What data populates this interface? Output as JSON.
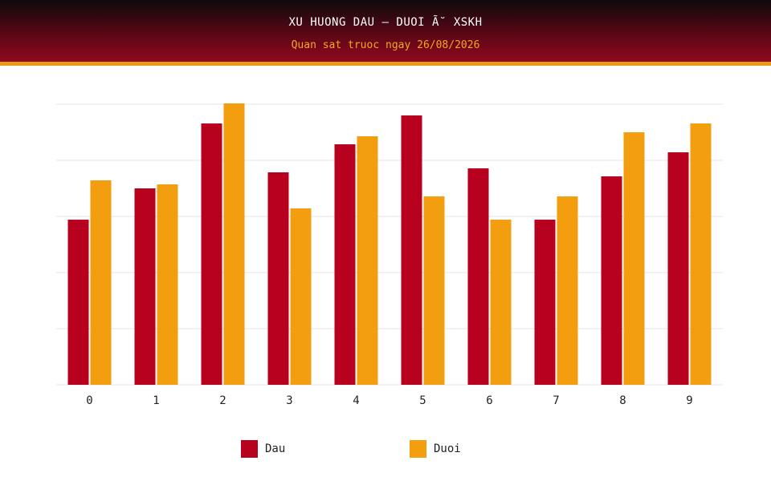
{
  "header": {
    "title": "XU HUONG DAU – DUOI Ã˘ XSKH",
    "subtitle": "Quan sat truoc ngay 26/08/2026"
  },
  "colors": {
    "dau": "#b8001f",
    "duoi": "#f29e0f",
    "grid": "#e6e6e6"
  },
  "legend": [
    {
      "label": "Dau",
      "color_key": "dau"
    },
    {
      "label": "Duoi",
      "color_key": "duoi"
    }
  ],
  "chart_data": {
    "type": "bar",
    "categories": [
      "0",
      "1",
      "2",
      "3",
      "4",
      "5",
      "6",
      "7",
      "8",
      "9"
    ],
    "series": [
      {
        "name": "Dau",
        "values": [
          20.6,
          24.5,
          32.6,
          26.5,
          30.0,
          33.6,
          27.0,
          20.6,
          26.0,
          29.0
        ]
      },
      {
        "name": "Duoi",
        "values": [
          25.5,
          25.0,
          35.1,
          22.0,
          31.0,
          23.5,
          20.6,
          23.5,
          31.5,
          32.6
        ]
      }
    ],
    "ylim": [
      0,
      35
    ],
    "grid": true,
    "legend_position": "bottom"
  }
}
